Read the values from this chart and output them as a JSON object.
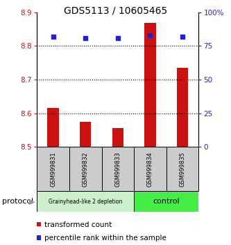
{
  "title": "GDS5113 / 10605465",
  "samples": [
    "GSM999831",
    "GSM999832",
    "GSM999833",
    "GSM999834",
    "GSM999835"
  ],
  "bar_values": [
    8.615,
    8.575,
    8.557,
    8.868,
    8.735
  ],
  "bar_base": 8.5,
  "percentile_values": [
    82,
    81,
    81,
    83,
    82
  ],
  "percentile_scale_max": 100,
  "ylim": [
    8.5,
    8.9
  ],
  "yticks": [
    8.5,
    8.6,
    8.7,
    8.8,
    8.9
  ],
  "right_yticks": [
    0,
    25,
    50,
    75,
    100
  ],
  "right_ytick_labels": [
    "0",
    "25",
    "50",
    "75",
    "100%"
  ],
  "bar_color": "#cc1111",
  "percentile_color": "#2222cc",
  "group1_label": "Grainyhead-like 2 depletion",
  "group2_label": "control",
  "group1_indices": [
    0,
    1,
    2
  ],
  "group2_indices": [
    3,
    4
  ],
  "group1_bg": "#ccf0cc",
  "group2_bg": "#44ee44",
  "sample_bg": "#cccccc",
  "protocol_label": "protocol",
  "legend_bar_label": "transformed count",
  "legend_pct_label": "percentile rank within the sample"
}
